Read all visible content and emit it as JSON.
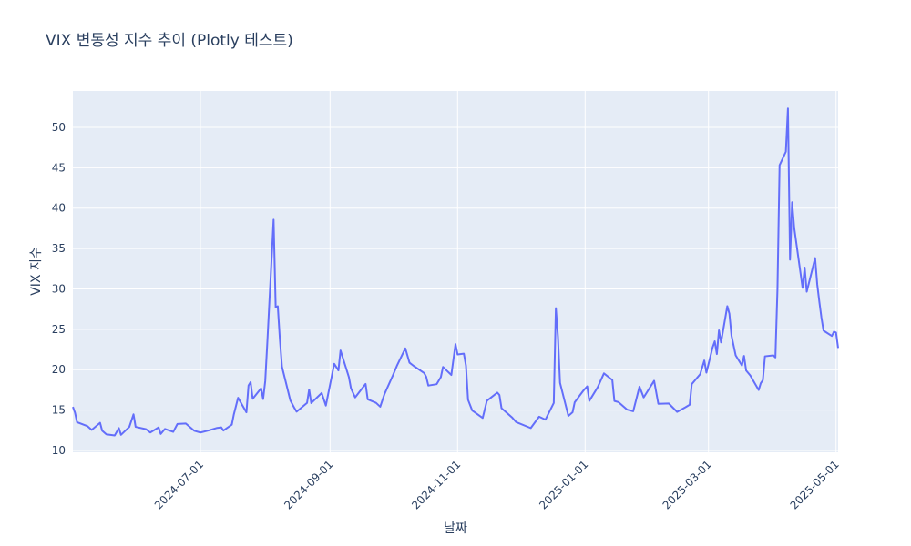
{
  "chart_data": {
    "type": "line",
    "title": "VIX 변동성 지수 추이 (Plotly 테스트)",
    "x_label": "날짜",
    "y_label": "VIX 지수",
    "xlim": [
      "2024-05-01",
      "2025-05-02"
    ],
    "ylim": [
      9.77,
      54.5
    ],
    "xticks": [
      "2024-07-01",
      "2024-09-01",
      "2024-11-01",
      "2025-01-01",
      "2025-03-01",
      "2025-05-01"
    ],
    "yticks": [
      10,
      15,
      20,
      25,
      30,
      35,
      40,
      45,
      50
    ],
    "grid": true,
    "x": [
      "2024-05-01",
      "2024-05-02",
      "2024-05-03",
      "2024-05-08",
      "2024-05-10",
      "2024-05-14",
      "2024-05-15",
      "2024-05-17",
      "2024-05-21",
      "2024-05-23",
      "2024-05-24",
      "2024-05-28",
      "2024-05-30",
      "2024-05-31",
      "2024-06-05",
      "2024-06-07",
      "2024-06-11",
      "2024-06-12",
      "2024-06-14",
      "2024-06-18",
      "2024-06-20",
      "2024-06-24",
      "2024-06-28",
      "2024-07-01",
      "2024-07-05",
      "2024-07-09",
      "2024-07-11",
      "2024-07-12",
      "2024-07-16",
      "2024-07-17",
      "2024-07-19",
      "2024-07-23",
      "2024-07-24",
      "2024-07-25",
      "2024-07-26",
      "2024-07-30",
      "2024-07-31",
      "2024-08-01",
      "2024-08-02",
      "2024-08-05",
      "2024-08-06",
      "2024-08-07",
      "2024-08-08",
      "2024-08-09",
      "2024-08-13",
      "2024-08-15",
      "2024-08-16",
      "2024-08-21",
      "2024-08-22",
      "2024-08-23",
      "2024-08-28",
      "2024-08-30",
      "2024-09-03",
      "2024-09-05",
      "2024-09-06",
      "2024-09-10",
      "2024-09-11",
      "2024-09-13",
      "2024-09-18",
      "2024-09-19",
      "2024-09-23",
      "2024-09-25",
      "2024-09-27",
      "2024-10-01",
      "2024-10-03",
      "2024-10-07",
      "2024-10-09",
      "2024-10-11",
      "2024-10-16",
      "2024-10-17",
      "2024-10-18",
      "2024-10-22",
      "2024-10-24",
      "2024-10-25",
      "2024-10-29",
      "2024-10-31",
      "2024-11-01",
      "2024-11-04",
      "2024-11-05",
      "2024-11-06",
      "2024-11-08",
      "2024-11-13",
      "2024-11-15",
      "2024-11-20",
      "2024-11-21",
      "2024-11-22",
      "2024-11-27",
      "2024-11-29",
      "2024-12-06",
      "2024-12-10",
      "2024-12-13",
      "2024-12-17",
      "2024-12-18",
      "2024-12-19",
      "2024-12-20",
      "2024-12-24",
      "2024-12-26",
      "2024-12-27",
      "2024-12-31",
      "2025-01-02",
      "2025-01-03",
      "2025-01-07",
      "2025-01-10",
      "2025-01-14",
      "2025-01-15",
      "2025-01-17",
      "2025-01-21",
      "2025-01-24",
      "2025-01-27",
      "2025-01-29",
      "2025-02-03",
      "2025-02-05",
      "2025-02-10",
      "2025-02-14",
      "2025-02-18",
      "2025-02-20",
      "2025-02-21",
      "2025-02-25",
      "2025-02-27",
      "2025-02-28",
      "2025-03-03",
      "2025-03-04",
      "2025-03-05",
      "2025-03-06",
      "2025-03-07",
      "2025-03-10",
      "2025-03-11",
      "2025-03-12",
      "2025-03-14",
      "2025-03-17",
      "2025-03-18",
      "2025-03-19",
      "2025-03-21",
      "2025-03-25",
      "2025-03-26",
      "2025-03-27",
      "2025-03-28",
      "2025-04-01",
      "2025-04-02",
      "2025-04-03",
      "2025-04-04",
      "2025-04-07",
      "2025-04-08",
      "2025-04-09",
      "2025-04-10",
      "2025-04-11",
      "2025-04-15",
      "2025-04-16",
      "2025-04-17",
      "2025-04-21",
      "2025-04-22",
      "2025-04-23",
      "2025-04-24",
      "2025-04-25",
      "2025-04-29",
      "2025-04-30",
      "2025-05-01",
      "2025-05-02"
    ],
    "series": [
      {
        "color": "#636efa",
        "values": [
          15.39,
          14.68,
          13.49,
          13.0,
          12.55,
          13.42,
          12.45,
          11.99,
          11.86,
          12.77,
          11.93,
          12.92,
          14.47,
          12.92,
          12.63,
          12.22,
          12.85,
          12.04,
          12.66,
          12.3,
          13.28,
          13.33,
          12.44,
          12.22,
          12.48,
          12.79,
          12.85,
          12.46,
          13.19,
          14.48,
          16.52,
          14.72,
          18.04,
          18.46,
          16.39,
          17.69,
          16.36,
          18.59,
          23.39,
          38.57,
          27.71,
          27.85,
          23.79,
          20.37,
          16.19,
          15.23,
          14.8,
          15.88,
          17.55,
          15.86,
          17.11,
          15.55,
          20.72,
          19.9,
          22.38,
          19.08,
          17.69,
          16.56,
          18.23,
          16.33,
          15.89,
          15.41,
          16.96,
          19.26,
          20.49,
          22.64,
          20.86,
          20.46,
          19.58,
          19.11,
          18.03,
          18.2,
          19.08,
          20.33,
          19.34,
          23.16,
          21.88,
          21.98,
          20.49,
          16.27,
          14.94,
          14.02,
          16.14,
          17.16,
          16.87,
          15.24,
          14.1,
          13.51,
          12.77,
          14.18,
          13.81,
          15.87,
          27.62,
          24.09,
          18.36,
          14.27,
          14.73,
          15.95,
          17.35,
          17.93,
          16.13,
          17.82,
          19.54,
          18.71,
          16.12,
          15.97,
          15.06,
          14.85,
          17.9,
          16.56,
          18.62,
          15.77,
          15.81,
          14.77,
          15.35,
          15.66,
          18.21,
          19.43,
          21.13,
          19.63,
          22.78,
          23.51,
          21.93,
          24.87,
          23.37,
          27.86,
          26.92,
          24.23,
          21.77,
          20.51,
          21.7,
          19.9,
          19.28,
          17.48,
          18.33,
          18.69,
          21.65,
          21.77,
          21.51,
          30.02,
          45.31,
          46.98,
          52.33,
          33.62,
          40.72,
          37.56,
          30.12,
          32.64,
          29.65,
          33.82,
          30.57,
          28.45,
          26.47,
          24.84,
          24.17,
          24.7,
          24.6,
          22.68
        ]
      }
    ]
  }
}
